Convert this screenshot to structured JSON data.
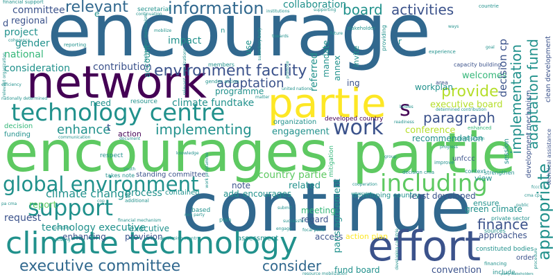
{
  "cloud": {
    "colors": {
      "purple": "#440154",
      "indigo": "#3b528b",
      "blue": "#31688e",
      "teal": "#21918c",
      "green": "#35b779",
      "lime": "#5ec962",
      "yellow": "#b5de2b",
      "gold": "#fde725"
    },
    "words": [
      {
        "id": "w1",
        "text": "encourage",
        "color": "blue"
      },
      {
        "id": "w2",
        "text": "encourages",
        "color": "lime"
      },
      {
        "id": "w3",
        "text": "partie",
        "color": "lime"
      },
      {
        "id": "w4",
        "text": "continue",
        "color": "blue"
      },
      {
        "id": "w5",
        "text": "network",
        "color": "purple"
      },
      {
        "id": "w6",
        "text": "partie",
        "color": "gold"
      },
      {
        "id": "w7",
        "text": "effort",
        "color": "indigo"
      },
      {
        "id": "w8",
        "text": "climate technology",
        "color": "teal"
      },
      {
        "id": "w9",
        "text": "technology centre",
        "color": "teal"
      },
      {
        "id": "w10",
        "text": "global environment",
        "color": "teal"
      },
      {
        "id": "w11",
        "text": "including",
        "color": "lime"
      },
      {
        "id": "w12",
        "text": "environment facility",
        "color": "indigo"
      },
      {
        "id": "w13",
        "text": "support",
        "color": "teal"
      },
      {
        "id": "w14",
        "text": "executive committee",
        "color": "blue"
      },
      {
        "id": "w15",
        "text": "work",
        "color": "indigo"
      },
      {
        "id": "w16",
        "text": "information",
        "color": "blue"
      },
      {
        "id": "w17",
        "text": "provide",
        "color": "yellow"
      },
      {
        "id": "w18",
        "text": "adaptation",
        "color": "indigo"
      },
      {
        "id": "w19",
        "text": "implementing",
        "color": "teal"
      },
      {
        "id": "w20",
        "text": "enhance",
        "color": "teal"
      },
      {
        "id": "w21",
        "text": "paragraph",
        "color": "indigo"
      },
      {
        "id": "w22",
        "text": "finance",
        "color": "indigo"
      },
      {
        "id": "w23",
        "text": "consider",
        "color": "blue"
      },
      {
        "id": "w24",
        "text": "climate change",
        "color": "teal"
      },
      {
        "id": "w25",
        "text": "relevant",
        "color": "blue"
      },
      {
        "id": "w26",
        "text": "board",
        "color": "teal"
      },
      {
        "id": "w27",
        "text": "activities",
        "color": "indigo"
      },
      {
        "id": "w28",
        "text": "collaboration",
        "color": "teal"
      },
      {
        "id": "w29",
        "text": "committee",
        "color": "indigo"
      },
      {
        "id": "w30",
        "text": "regional",
        "color": "indigo"
      },
      {
        "id": "w31",
        "text": "project",
        "color": "teal"
      },
      {
        "id": "w32",
        "text": "gender",
        "color": "teal"
      },
      {
        "id": "w33",
        "text": "national",
        "color": "green"
      },
      {
        "id": "w34",
        "text": "consideration",
        "color": "teal"
      },
      {
        "id": "w35",
        "text": "contribution",
        "color": "indigo"
      },
      {
        "id": "w36",
        "text": "impact",
        "color": "teal"
      },
      {
        "id": "w37",
        "text": "welcomes",
        "color": "green"
      },
      {
        "id": "w38",
        "text": "executive board",
        "color": "yellow"
      },
      {
        "id": "w39",
        "text": "climate fund",
        "color": "teal"
      },
      {
        "id": "w40",
        "text": "programme",
        "color": "teal"
      },
      {
        "id": "w41",
        "text": "take",
        "color": "teal"
      },
      {
        "id": "w42",
        "text": "need",
        "color": "teal"
      },
      {
        "id": "w43",
        "text": "engagement",
        "color": "teal"
      },
      {
        "id": "w44",
        "text": "conference",
        "color": "yellow"
      },
      {
        "id": "w45",
        "text": "organization",
        "color": "teal"
      },
      {
        "id": "w46",
        "text": "recommendation",
        "color": "teal"
      },
      {
        "id": "w47",
        "text": "action",
        "color": "purple"
      },
      {
        "id": "w48",
        "text": "country partie",
        "color": "lime"
      },
      {
        "id": "w49",
        "text": "related",
        "color": "teal"
      },
      {
        "id": "w50",
        "text": "note",
        "color": "indigo"
      },
      {
        "id": "w51",
        "text": "add",
        "color": "teal"
      },
      {
        "id": "w52",
        "text": "encourages",
        "color": "teal"
      },
      {
        "id": "w53",
        "text": "process",
        "color": "teal"
      },
      {
        "id": "w54",
        "text": "request",
        "color": "indigo"
      },
      {
        "id": "w55",
        "text": "report",
        "color": "lime"
      },
      {
        "id": "w56",
        "text": "technology executive",
        "color": "teal"
      },
      {
        "id": "w57",
        "text": "enhancing",
        "color": "indigo"
      },
      {
        "id": "w58",
        "text": "provision",
        "color": "indigo"
      },
      {
        "id": "w59",
        "text": "meeting",
        "color": "green"
      },
      {
        "id": "w60",
        "text": "regard",
        "color": "indigo"
      },
      {
        "id": "w61",
        "text": "access",
        "color": "indigo"
      },
      {
        "id": "w62",
        "text": "action plan",
        "color": "gold"
      },
      {
        "id": "w63",
        "text": "fund board",
        "color": "teal"
      },
      {
        "id": "w64",
        "text": "convention",
        "color": "indigo"
      },
      {
        "id": "w65",
        "text": "green climate",
        "color": "teal"
      },
      {
        "id": "w66",
        "text": "ensure",
        "color": "teal"
      },
      {
        "id": "w67",
        "text": "least developed",
        "color": "indigo"
      },
      {
        "id": "w68",
        "text": "developing country",
        "color": "teal"
      },
      {
        "id": "w69",
        "text": "approaches",
        "color": "indigo"
      },
      {
        "id": "w70",
        "text": "order",
        "color": "indigo"
      },
      {
        "id": "w71",
        "text": "assessment",
        "color": "teal"
      },
      {
        "id": "w72",
        "text": "standing committee",
        "color": "indigo"
      },
      {
        "id": "w73",
        "text": "contained",
        "color": "teal"
      },
      {
        "id": "w74",
        "text": "workplan",
        "color": "teal"
      },
      {
        "id": "w75",
        "text": "executive",
        "color": "teal"
      },
      {
        "id": "w76",
        "text": "view",
        "color": "teal"
      },
      {
        "id": "w77",
        "text": "developed country",
        "color": "purple"
      },
      {
        "id": "w78",
        "text": "unfccc",
        "color": "indigo"
      },
      {
        "id": "w79",
        "text": "implementation",
        "color": "teal"
      },
      {
        "id": "w80",
        "text": "adaptation fund",
        "color": "teal"
      },
      {
        "id": "w81",
        "text": "decision cp",
        "color": "indigo"
      },
      {
        "id": "w82",
        "text": "appropriate",
        "color": "teal"
      },
      {
        "id": "w83",
        "text": "referred",
        "color": "teal"
      },
      {
        "id": "w84",
        "text": "annex",
        "color": "teal"
      },
      {
        "id": "w85",
        "text": "paris agreement",
        "color": "teal"
      },
      {
        "id": "w86",
        "text": "development mechanism",
        "color": "indigo"
      },
      {
        "id": "w87",
        "text": "clean development",
        "color": "indigo"
      },
      {
        "id": "w88",
        "text": "capacity building",
        "color": "indigo"
      },
      {
        "id": "w89",
        "text": "technical assistance",
        "color": "indigo"
      },
      {
        "id": "w90",
        "text": "mandate",
        "color": "teal"
      },
      {
        "id": "w91",
        "text": "account",
        "color": "teal"
      },
      {
        "id": "w92",
        "text": "use",
        "color": "teal"
      },
      {
        "id": "w93",
        "text": "invite",
        "color": "teal"
      },
      {
        "id": "w94",
        "text": "members",
        "color": "teal"
      },
      {
        "id": "w95",
        "text": "resource",
        "color": "teal"
      },
      {
        "id": "w96",
        "text": "funding",
        "color": "teal"
      },
      {
        "id": "w97",
        "text": "decision",
        "color": "green"
      },
      {
        "id": "w98",
        "text": "ing",
        "color": "indigo"
      },
      {
        "id": "w99",
        "text": "area",
        "color": "indigo"
      },
      {
        "id": "w100",
        "text": "s",
        "color": "purple"
      },
      {
        "id": "w101",
        "text": "t",
        "color": "indigo"
      },
      {
        "id": "w102",
        "text": "d",
        "color": "indigo"
      },
      {
        "id": "w103",
        "text": "r",
        "color": "teal"
      },
      {
        "id": "w104",
        "text": "e",
        "color": "teal"
      },
      {
        "id": "w105",
        "text": "private sector",
        "color": "teal"
      },
      {
        "id": "w106",
        "text": "constituted bodies",
        "color": "teal"
      },
      {
        "id": "w107",
        "text": "session",
        "color": "teal"
      },
      {
        "id": "w108",
        "text": "respect",
        "color": "teal"
      },
      {
        "id": "w109",
        "text": "stakeholder",
        "color": "teal"
      },
      {
        "id": "w110",
        "text": "financial support",
        "color": "teal"
      },
      {
        "id": "w111",
        "text": "mitigation",
        "color": "green"
      },
      {
        "id": "w112",
        "text": "strengthen",
        "color": "teal"
      },
      {
        "id": "w113",
        "text": "context",
        "color": "teal"
      },
      {
        "id": "w114",
        "text": "improve",
        "color": "teal"
      },
      {
        "id": "w115",
        "text": "sources",
        "color": "teal"
      },
      {
        "id": "w116",
        "text": "based",
        "color": "teal"
      },
      {
        "id": "w117",
        "text": "plan",
        "color": "teal"
      },
      {
        "id": "w118",
        "text": "include",
        "color": "teal"
      },
      {
        "id": "w119",
        "text": "financing",
        "color": "teal"
      },
      {
        "id": "w120",
        "text": "resource mobilization",
        "color": "teal"
      },
      {
        "id": "w121",
        "text": "takes note",
        "color": "teal"
      },
      {
        "id": "w122",
        "text": "additional",
        "color": "teal"
      },
      {
        "id": "w123",
        "text": "enhanced",
        "color": "green"
      },
      {
        "id": "w124",
        "text": "secretariat",
        "color": "teal"
      },
      {
        "id": "w125",
        "text": "continuation",
        "color": "teal"
      },
      {
        "id": "w126",
        "text": "mobilize",
        "color": "teal"
      },
      {
        "id": "w127",
        "text": "coherence",
        "color": "teal"
      },
      {
        "id": "w128",
        "text": "reporting",
        "color": "teal"
      },
      {
        "id": "w129",
        "text": "future",
        "color": "teal"
      },
      {
        "id": "w130",
        "text": "experience",
        "color": "teal"
      },
      {
        "id": "w131",
        "text": "providing",
        "color": "teal"
      },
      {
        "id": "w132",
        "text": "existing",
        "color": "teal"
      },
      {
        "id": "w133",
        "text": "policies",
        "color": "teal"
      },
      {
        "id": "w134",
        "text": "developing country",
        "color": "teal"
      },
      {
        "id": "w135",
        "text": "subsidiary body",
        "color": "teal"
      },
      {
        "id": "w136",
        "text": "relevant organization",
        "color": "teal"
      },
      {
        "id": "w137",
        "text": "nationally determined",
        "color": "teal"
      },
      {
        "id": "w138",
        "text": "efficiency",
        "color": "teal"
      },
      {
        "id": "w139",
        "text": "bodies",
        "color": "teal"
      },
      {
        "id": "w140",
        "text": "readiness",
        "color": "teal"
      },
      {
        "id": "w141",
        "text": "engage",
        "color": "teal"
      },
      {
        "id": "w142",
        "text": "successful",
        "color": "teal"
      },
      {
        "id": "w143",
        "text": "progress",
        "color": "teal"
      },
      {
        "id": "w144",
        "text": "group",
        "color": "teal"
      },
      {
        "id": "w145",
        "text": "climate action",
        "color": "teal"
      },
      {
        "id": "w146",
        "text": "goal",
        "color": "teal"
      },
      {
        "id": "w147",
        "text": "public",
        "color": "teal"
      },
      {
        "id": "w148",
        "text": "procedure",
        "color": "teal"
      },
      {
        "id": "w149",
        "text": "submit",
        "color": "teal"
      },
      {
        "id": "w150",
        "text": "towards",
        "color": "teal"
      },
      {
        "id": "w151",
        "text": "focal point",
        "color": "teal"
      },
      {
        "id": "w152",
        "text": "cooperation",
        "color": "teal"
      },
      {
        "id": "w153",
        "text": "institutions",
        "color": "teal"
      },
      {
        "id": "w154",
        "text": "youth",
        "color": "teal"
      },
      {
        "id": "w155",
        "text": "countrie",
        "color": "teal"
      },
      {
        "id": "w156",
        "text": "appreciation",
        "color": "teal"
      },
      {
        "id": "w157",
        "text": "gender action",
        "color": "teal"
      },
      {
        "id": "w158",
        "text": "united nations",
        "color": "teal"
      },
      {
        "id": "w159",
        "text": "determined contribution",
        "color": "teal"
      },
      {
        "id": "w160",
        "text": "ways",
        "color": "teal"
      },
      {
        "id": "w161",
        "text": "non party",
        "color": "teal"
      },
      {
        "id": "w162",
        "text": "promote",
        "color": "teal"
      },
      {
        "id": "w163",
        "text": "fccc cp",
        "color": "teal"
      },
      {
        "id": "w164",
        "text": "financial mechanism",
        "color": "teal"
      },
      {
        "id": "w165",
        "text": "decision cma",
        "color": "teal"
      },
      {
        "id": "w166",
        "text": "document",
        "color": "teal"
      },
      {
        "id": "w167",
        "text": "communication",
        "color": "teal"
      },
      {
        "id": "w168",
        "text": "matter",
        "color": "teal"
      },
      {
        "id": "w169",
        "text": "knowledge",
        "color": "teal"
      },
      {
        "id": "w170",
        "text": "developing countrie",
        "color": "teal"
      },
      {
        "id": "w171",
        "text": "work programme",
        "color": "teal"
      },
      {
        "id": "w172",
        "text": "supporting",
        "color": "teal"
      },
      {
        "id": "w173",
        "text": "party stakeholders",
        "color": "teal"
      },
      {
        "id": "w174",
        "text": "pa cma",
        "color": "teal"
      },
      {
        "id": "w175",
        "text": "cop",
        "color": "teal"
      },
      {
        "id": "w176",
        "text": "n",
        "color": "teal"
      },
      {
        "id": "w177",
        "text": "technology mechanism",
        "color": "teal"
      },
      {
        "id": "w178",
        "text": "relevant organizations",
        "color": "teal"
      },
      {
        "id": "w179",
        "text": "cma cp",
        "color": "teal"
      }
    ]
  }
}
